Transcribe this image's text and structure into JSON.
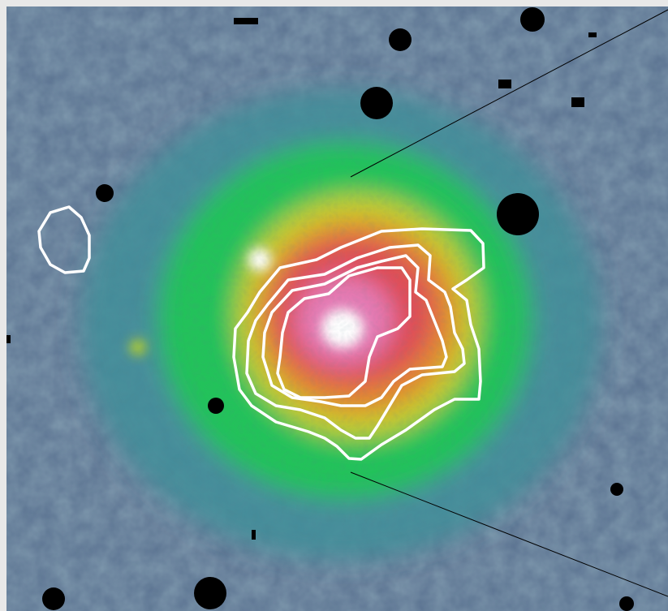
{
  "image": {
    "colormap": {
      "background": "#5a7190",
      "low": "#3f8f9a",
      "mid": "#22c35a",
      "yellow": "#d8cf2a",
      "red": "#e04b55",
      "peak": "#ffffff",
      "mask": "#000000",
      "contour": "#ffffff",
      "frame": "#e8e8e8"
    },
    "contour_levels_count": 4,
    "masked_sources_count": 16,
    "zoom_lines_count": 2
  }
}
